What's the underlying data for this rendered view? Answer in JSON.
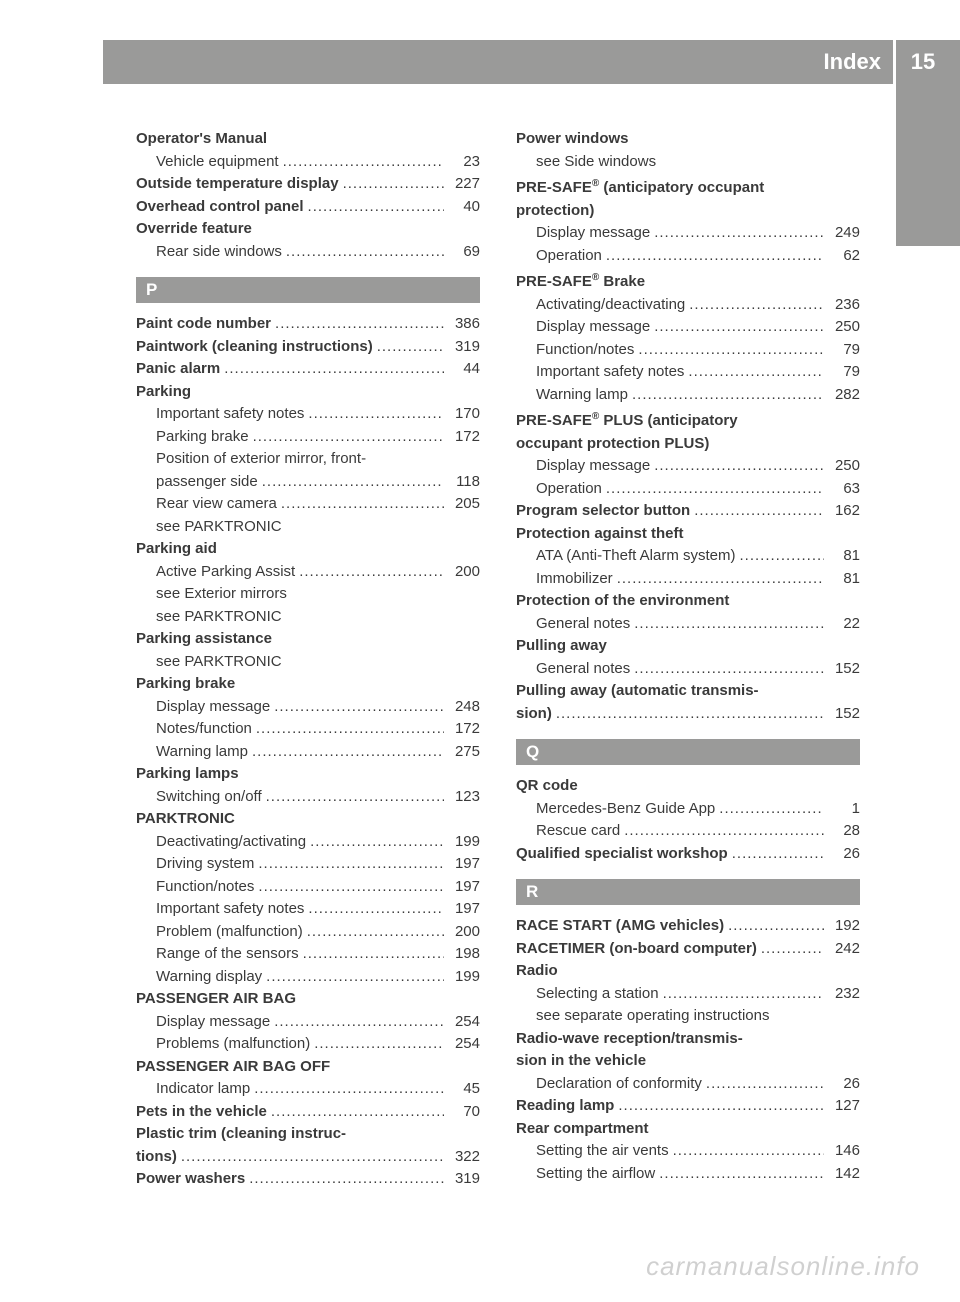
{
  "header": {
    "title": "Index",
    "page": "15"
  },
  "watermark": "carmanualsonline.info",
  "left": {
    "groups": [
      {
        "entries": [
          {
            "bold": true,
            "sub": false,
            "label": "Operator's Manual",
            "page": ""
          },
          {
            "bold": false,
            "sub": true,
            "label": "Vehicle equipment",
            "page": "23"
          },
          {
            "bold": true,
            "sub": false,
            "label": "Outside temperature display",
            "page": "227"
          },
          {
            "bold": true,
            "sub": false,
            "label": "Overhead control panel",
            "page": "40"
          },
          {
            "bold": true,
            "sub": false,
            "label": "Override feature",
            "page": ""
          },
          {
            "bold": false,
            "sub": true,
            "label": "Rear side windows",
            "page": "69"
          }
        ]
      },
      {
        "letter": "P",
        "entries": [
          {
            "bold": true,
            "sub": false,
            "label": "Paint code number",
            "page": "386"
          },
          {
            "bold": true,
            "sub": false,
            "label": "Paintwork (cleaning instructions)",
            "page": "319"
          },
          {
            "bold": true,
            "sub": false,
            "label": "Panic alarm",
            "page": "44"
          },
          {
            "bold": true,
            "sub": false,
            "label": "Parking",
            "page": ""
          },
          {
            "bold": false,
            "sub": true,
            "label": "Important safety notes",
            "page": "170"
          },
          {
            "bold": false,
            "sub": true,
            "label": "Parking brake",
            "page": "172"
          },
          {
            "bold": false,
            "sub": true,
            "label": "Position of exterior mirror, front-",
            "page": ""
          },
          {
            "bold": false,
            "sub": true,
            "label": "passenger side",
            "page": "118"
          },
          {
            "bold": false,
            "sub": true,
            "label": "Rear view camera",
            "page": "205"
          },
          {
            "bold": false,
            "sub": true,
            "label": "see PARKTRONIC",
            "page": ""
          },
          {
            "bold": true,
            "sub": false,
            "label": "Parking aid",
            "page": ""
          },
          {
            "bold": false,
            "sub": true,
            "label": "Active Parking Assist",
            "page": "200"
          },
          {
            "bold": false,
            "sub": true,
            "label": "see Exterior mirrors",
            "page": ""
          },
          {
            "bold": false,
            "sub": true,
            "label": "see PARKTRONIC",
            "page": ""
          },
          {
            "bold": true,
            "sub": false,
            "label": "Parking assistance",
            "page": ""
          },
          {
            "bold": false,
            "sub": true,
            "label": "see PARKTRONIC",
            "page": ""
          },
          {
            "bold": true,
            "sub": false,
            "label": "Parking brake",
            "page": ""
          },
          {
            "bold": false,
            "sub": true,
            "label": "Display message",
            "page": "248"
          },
          {
            "bold": false,
            "sub": true,
            "label": "Notes/function",
            "page": "172"
          },
          {
            "bold": false,
            "sub": true,
            "label": "Warning lamp",
            "page": "275"
          },
          {
            "bold": true,
            "sub": false,
            "label": "Parking lamps",
            "page": ""
          },
          {
            "bold": false,
            "sub": true,
            "label": "Switching on/off",
            "page": "123"
          },
          {
            "bold": true,
            "sub": false,
            "label": "PARKTRONIC",
            "page": ""
          },
          {
            "bold": false,
            "sub": true,
            "label": "Deactivating/activating",
            "page": "199"
          },
          {
            "bold": false,
            "sub": true,
            "label": "Driving system",
            "page": "197"
          },
          {
            "bold": false,
            "sub": true,
            "label": "Function/notes",
            "page": "197"
          },
          {
            "bold": false,
            "sub": true,
            "label": "Important safety notes",
            "page": "197"
          },
          {
            "bold": false,
            "sub": true,
            "label": "Problem (malfunction)",
            "page": "200"
          },
          {
            "bold": false,
            "sub": true,
            "label": "Range of the sensors",
            "page": "198"
          },
          {
            "bold": false,
            "sub": true,
            "label": "Warning display",
            "page": "199"
          },
          {
            "bold": true,
            "sub": false,
            "label": "PASSENGER AIR BAG",
            "page": ""
          },
          {
            "bold": false,
            "sub": true,
            "label": "Display message",
            "page": "254"
          },
          {
            "bold": false,
            "sub": true,
            "label": "Problems (malfunction)",
            "page": "254"
          },
          {
            "bold": true,
            "sub": false,
            "label": "PASSENGER AIR BAG OFF",
            "page": ""
          },
          {
            "bold": false,
            "sub": true,
            "label": "Indicator lamp",
            "page": "45"
          },
          {
            "bold": true,
            "sub": false,
            "label": "Pets in the vehicle",
            "page": "70"
          },
          {
            "bold": true,
            "sub": false,
            "label": "Plastic trim (cleaning instruc-",
            "page": ""
          },
          {
            "bold": true,
            "sub": false,
            "label": "tions)",
            "page": "322"
          },
          {
            "bold": true,
            "sub": false,
            "label": "Power washers",
            "page": "319"
          }
        ]
      }
    ]
  },
  "right": {
    "groups": [
      {
        "entries": [
          {
            "bold": true,
            "sub": false,
            "label": "Power windows",
            "page": ""
          },
          {
            "bold": false,
            "sub": true,
            "label": "see Side windows",
            "page": ""
          },
          {
            "bold": true,
            "sub": false,
            "label": "PRE-SAFE® (anticipatory occupant",
            "page": "",
            "sup": true
          },
          {
            "bold": true,
            "sub": false,
            "label": "protection)",
            "page": ""
          },
          {
            "bold": false,
            "sub": true,
            "label": "Display message",
            "page": "249"
          },
          {
            "bold": false,
            "sub": true,
            "label": "Operation",
            "page": "62"
          },
          {
            "bold": true,
            "sub": false,
            "label": "PRE-SAFE® Brake",
            "page": "",
            "sup": true
          },
          {
            "bold": false,
            "sub": true,
            "label": "Activating/deactivating",
            "page": "236"
          },
          {
            "bold": false,
            "sub": true,
            "label": "Display message",
            "page": "250"
          },
          {
            "bold": false,
            "sub": true,
            "label": "Function/notes",
            "page": "79"
          },
          {
            "bold": false,
            "sub": true,
            "label": "Important safety notes",
            "page": "79"
          },
          {
            "bold": false,
            "sub": true,
            "label": "Warning lamp",
            "page": "282"
          },
          {
            "bold": true,
            "sub": false,
            "label": "PRE-SAFE® PLUS (anticipatory",
            "page": "",
            "sup": true
          },
          {
            "bold": true,
            "sub": false,
            "label": "occupant protection PLUS)",
            "page": ""
          },
          {
            "bold": false,
            "sub": true,
            "label": "Display message",
            "page": "250"
          },
          {
            "bold": false,
            "sub": true,
            "label": "Operation",
            "page": "63"
          },
          {
            "bold": true,
            "sub": false,
            "label": "Program selector button",
            "page": "162"
          },
          {
            "bold": true,
            "sub": false,
            "label": "Protection against theft",
            "page": ""
          },
          {
            "bold": false,
            "sub": true,
            "label": "ATA (Anti-Theft Alarm system)",
            "page": "81"
          },
          {
            "bold": false,
            "sub": true,
            "label": "Immobilizer",
            "page": "81"
          },
          {
            "bold": true,
            "sub": false,
            "label": "Protection of the environment",
            "page": ""
          },
          {
            "bold": false,
            "sub": true,
            "label": "General notes",
            "page": "22"
          },
          {
            "bold": true,
            "sub": false,
            "label": "Pulling away",
            "page": ""
          },
          {
            "bold": false,
            "sub": true,
            "label": "General notes",
            "page": "152"
          },
          {
            "bold": true,
            "sub": false,
            "label": "Pulling away (automatic transmis-",
            "page": ""
          },
          {
            "bold": true,
            "sub": false,
            "label": "sion)",
            "page": "152"
          }
        ]
      },
      {
        "letter": "Q",
        "entries": [
          {
            "bold": true,
            "sub": false,
            "label": "QR code",
            "page": ""
          },
          {
            "bold": false,
            "sub": true,
            "label": "Mercedes-Benz Guide App",
            "page": "1"
          },
          {
            "bold": false,
            "sub": true,
            "label": "Rescue card",
            "page": "28"
          },
          {
            "bold": true,
            "sub": false,
            "label": "Qualified specialist workshop",
            "page": "26"
          }
        ]
      },
      {
        "letter": "R",
        "entries": [
          {
            "bold": true,
            "sub": false,
            "label": "RACE START (AMG vehicles)",
            "page": "192"
          },
          {
            "bold": true,
            "sub": false,
            "label": "RACETIMER (on-board computer)",
            "page": "242"
          },
          {
            "bold": true,
            "sub": false,
            "label": "Radio",
            "page": ""
          },
          {
            "bold": false,
            "sub": true,
            "label": "Selecting a station",
            "page": "232"
          },
          {
            "bold": false,
            "sub": true,
            "label": "see separate operating instructions",
            "page": ""
          },
          {
            "bold": true,
            "sub": false,
            "label": "Radio-wave reception/transmis-",
            "page": ""
          },
          {
            "bold": true,
            "sub": false,
            "label": "sion in the vehicle",
            "page": ""
          },
          {
            "bold": false,
            "sub": true,
            "label": "Declaration of conformity",
            "page": "26"
          },
          {
            "bold": true,
            "sub": false,
            "label": "Reading lamp",
            "page": "127"
          },
          {
            "bold": true,
            "sub": false,
            "label": "Rear compartment",
            "page": ""
          },
          {
            "bold": false,
            "sub": true,
            "label": "Setting the air vents",
            "page": "146"
          },
          {
            "bold": false,
            "sub": true,
            "label": "Setting the airflow",
            "page": "142"
          }
        ]
      }
    ]
  }
}
